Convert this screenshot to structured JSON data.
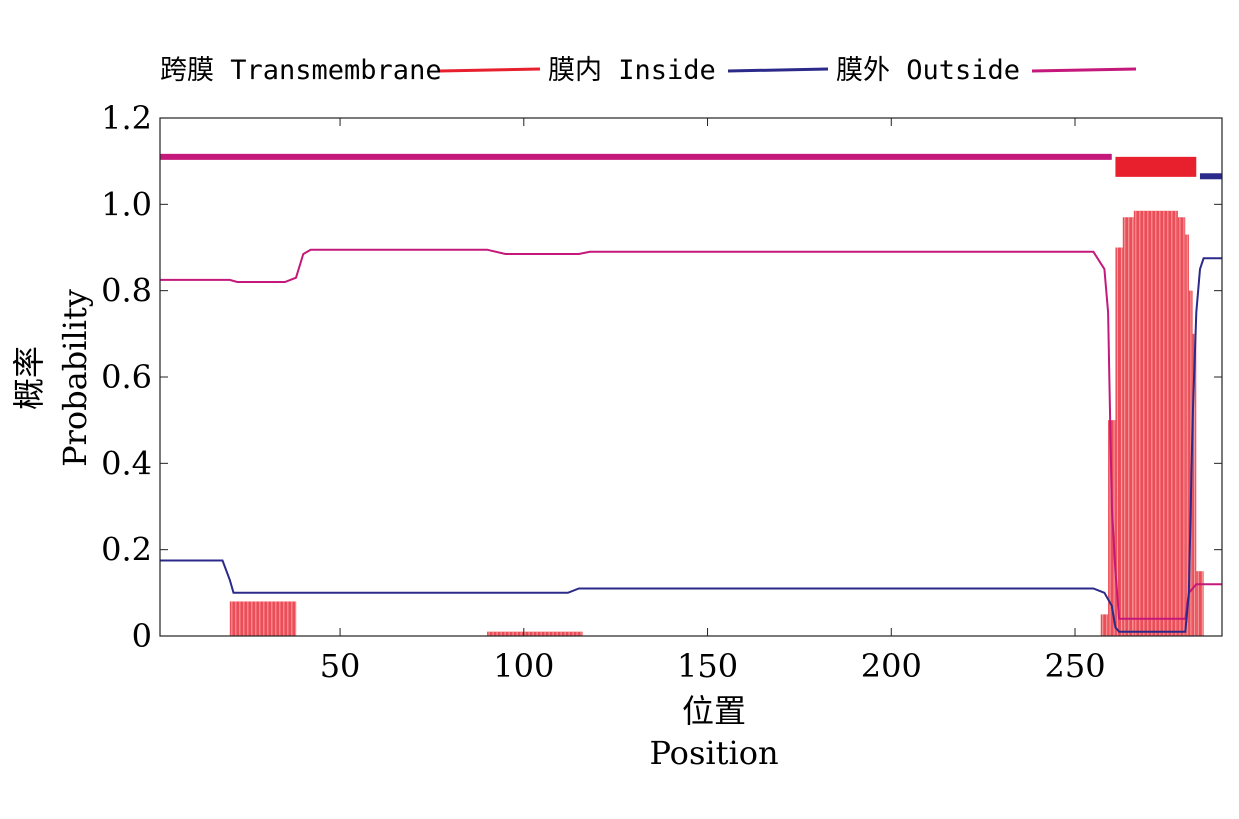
{
  "chart_data": {
    "type": "line",
    "x_ticks": [
      50,
      100,
      150,
      200,
      250
    ],
    "y_ticks": [
      "0",
      "0.2",
      "0.4",
      "0.6",
      "0.8",
      "1.0",
      "1.2"
    ],
    "xlim": [
      1,
      290
    ],
    "ylim": [
      0,
      1.2
    ],
    "x_label_cn": "位置",
    "x_label_en": "Position",
    "y_label_cn": "概率",
    "y_label_en": "Probability",
    "grid": false,
    "legend_position": "top",
    "legend": [
      {
        "label": "跨膜 Transmembrane",
        "color": "#e8202e"
      },
      {
        "label": "膜内 Inside",
        "color": "#2b2a8a"
      },
      {
        "label": "膜外 Outside",
        "color": "#c4187a"
      }
    ],
    "series": [
      {
        "name": "膜外 Outside",
        "color": "#c4187a",
        "x": [
          1,
          20,
          22,
          35,
          38,
          40,
          42,
          90,
          95,
          115,
          118,
          255,
          258,
          259,
          260,
          261,
          262,
          280,
          281,
          283,
          284,
          285,
          290
        ],
        "y": [
          0.825,
          0.825,
          0.82,
          0.82,
          0.83,
          0.885,
          0.895,
          0.895,
          0.885,
          0.885,
          0.89,
          0.89,
          0.85,
          0.75,
          0.3,
          0.15,
          0.04,
          0.04,
          0.1,
          0.12,
          0.12,
          0.12,
          0.12
        ]
      },
      {
        "name": "膜内 Inside",
        "color": "#2b2a8a",
        "x": [
          1,
          18,
          20,
          21,
          40,
          90,
          95,
          110,
          112,
          115,
          255,
          258,
          260,
          261,
          262,
          280,
          281,
          282,
          283,
          284,
          285,
          290
        ],
        "y": [
          0.175,
          0.175,
          0.13,
          0.1,
          0.1,
          0.1,
          0.1,
          0.1,
          0.1,
          0.11,
          0.11,
          0.1,
          0.07,
          0.02,
          0.01,
          0.01,
          0.1,
          0.5,
          0.75,
          0.85,
          0.875,
          0.875
        ]
      }
    ],
    "transmembrane_bars": [
      {
        "x_start": 20,
        "x_end": 38,
        "y": 0.08
      },
      {
        "x_start": 90,
        "x_end": 116,
        "y": 0.01
      },
      {
        "x_start": 257,
        "x_end": 259,
        "y": 0.05
      },
      {
        "x_start": 259,
        "x_end": 261,
        "y": 0.5
      },
      {
        "x_start": 261,
        "x_end": 263,
        "y": 0.9
      },
      {
        "x_start": 263,
        "x_end": 266,
        "y": 0.97
      },
      {
        "x_start": 266,
        "x_end": 278,
        "y": 0.985
      },
      {
        "x_start": 278,
        "x_end": 280,
        "y": 0.97
      },
      {
        "x_start": 280,
        "x_end": 281,
        "y": 0.93
      },
      {
        "x_start": 281,
        "x_end": 282,
        "y": 0.8
      },
      {
        "x_start": 282,
        "x_end": 283,
        "y": 0.7
      },
      {
        "x_start": 283,
        "x_end": 285,
        "y": 0.15
      }
    ],
    "topology": [
      {
        "region": "Outside",
        "x_start": 1,
        "x_end": 260,
        "color": "#c4187a"
      },
      {
        "region": "Transmembrane",
        "x_start": 261,
        "x_end": 283,
        "color": "#e8202e"
      },
      {
        "region": "Inside",
        "x_start": 284,
        "x_end": 290,
        "color": "#2b2a8a"
      }
    ]
  }
}
